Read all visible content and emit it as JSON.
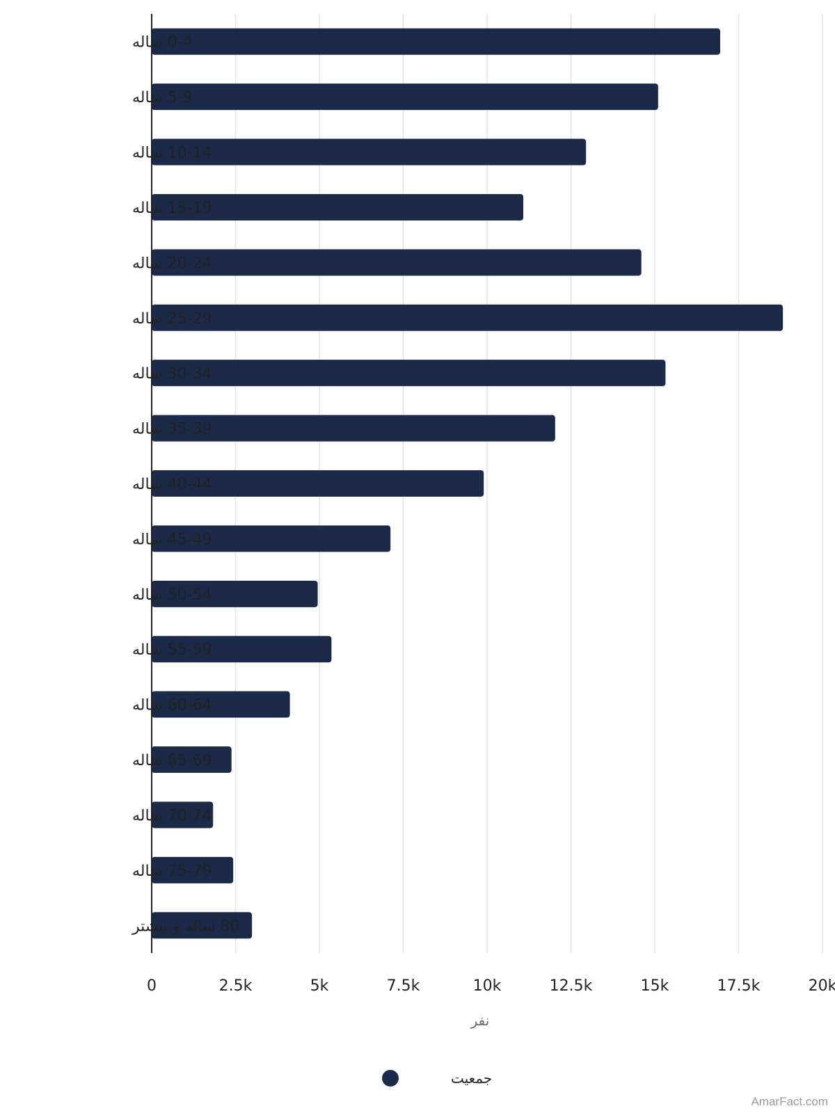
{
  "chart_data": {
    "type": "bar",
    "orientation": "horizontal",
    "categories": [
      "0-4 ساله",
      "5-9 ساله",
      "10-14 ساله",
      "15-19 ساله",
      "20-24 ساله",
      "25-29 ساله",
      "30-34 ساله",
      "35-39 ساله",
      "40-44 ساله",
      "45-49 ساله",
      "50-54 ساله",
      "55-59 ساله",
      "60-64 ساله",
      "65-69 ساله",
      "70-74 ساله",
      "75-79 ساله",
      "80 ساله و بیشتر"
    ],
    "series": [
      {
        "name": "جمعیت",
        "color": "#1c2a4a",
        "values": [
          16950,
          15100,
          12950,
          11080,
          14600,
          18820,
          15320,
          12030,
          9900,
          7120,
          4950,
          5360,
          4120,
          2380,
          1830,
          2430,
          2990
        ]
      }
    ],
    "xlabel": "نفر",
    "xlim": [
      0,
      20000
    ],
    "xticks": [
      "0",
      "2.5k",
      "5k",
      "7.5k",
      "10k",
      "12.5k",
      "15k",
      "17.5k",
      "20k"
    ],
    "grid": true,
    "legend_position": "bottom"
  },
  "watermark": "AmarFact.com"
}
